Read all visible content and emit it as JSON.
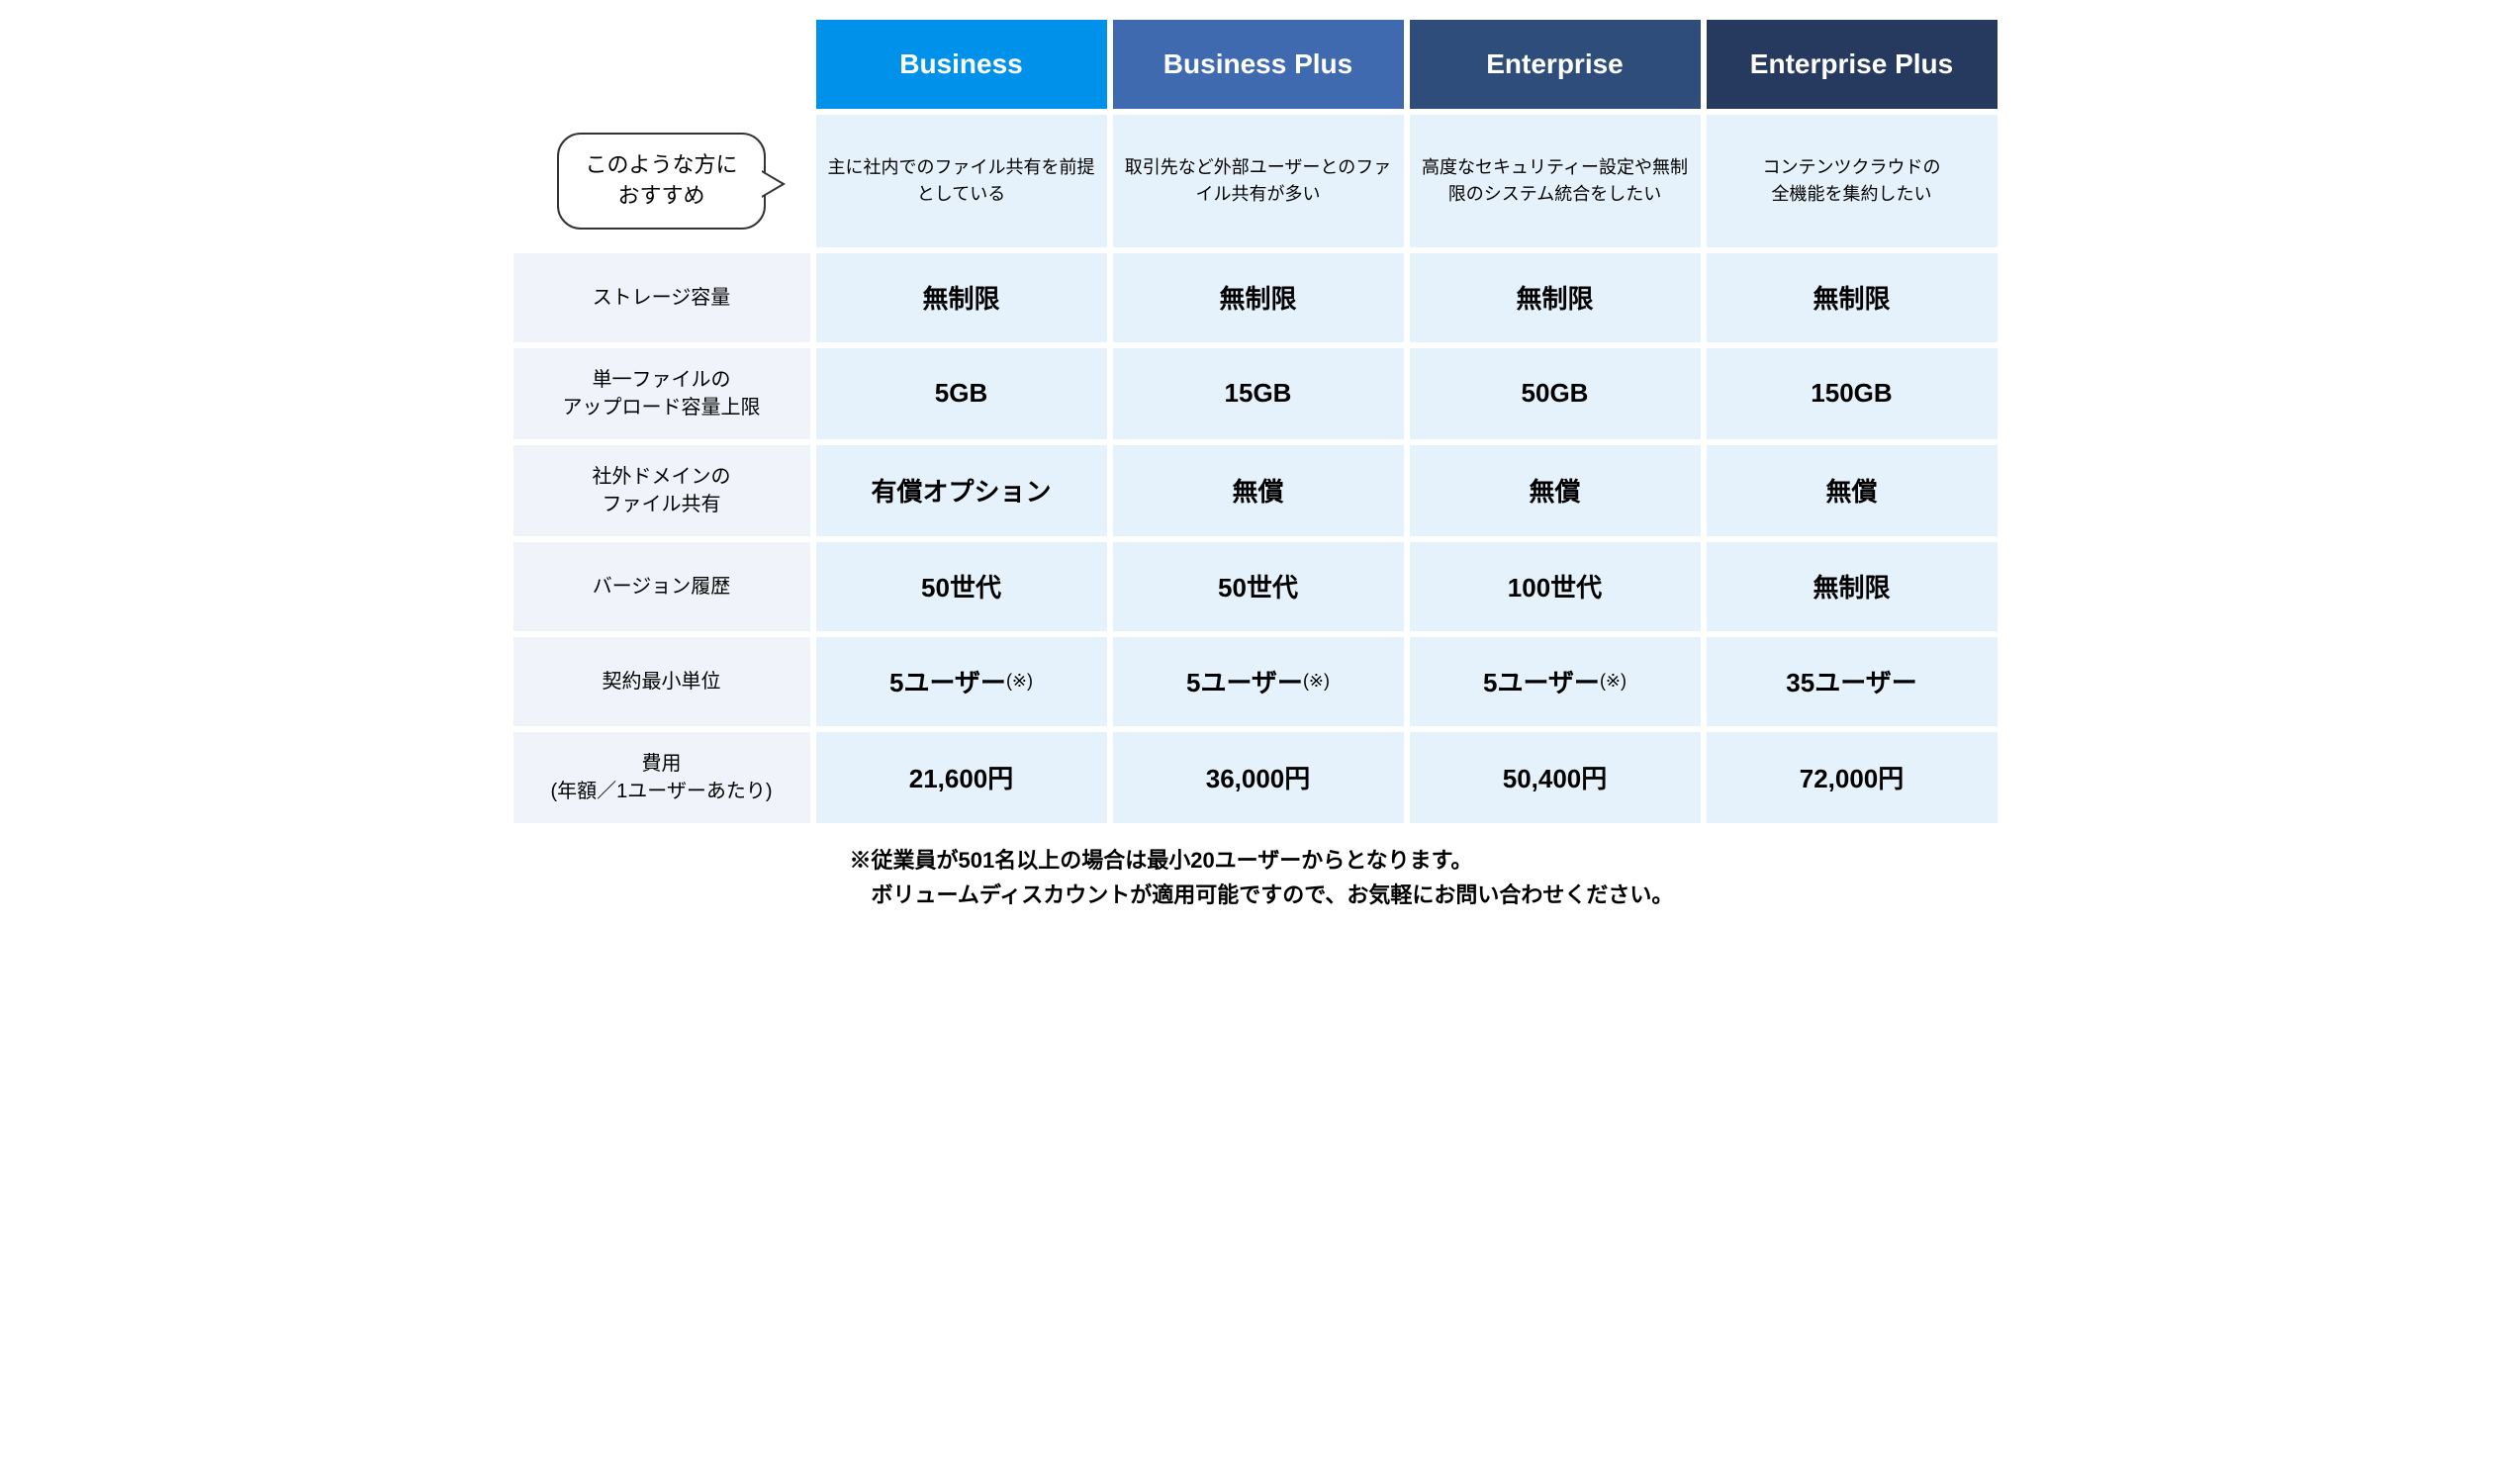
{
  "colors": {
    "header_business": "#0091ea",
    "header_business_plus": "#3f6ab0",
    "header_enterprise": "#2e4d7b",
    "header_enterprise_plus": "#253a5e",
    "header_text": "#ffffff",
    "cell_blue": "#e6f2fb",
    "cell_alt": "#f0f4fa",
    "label_cell": "#f0f4fa",
    "background": "#ffffff",
    "text": "#000000",
    "bubble_border": "#333333"
  },
  "bubble": {
    "line1": "このような方に",
    "line2": "おすすめ"
  },
  "plans": [
    {
      "name": "Business",
      "header_color": "#0091ea"
    },
    {
      "name": "Business Plus",
      "header_color": "#3f6ab0"
    },
    {
      "name": "Enterprise",
      "header_color": "#2e4d7b"
    },
    {
      "name": "Enterprise Plus",
      "header_color": "#253a5e"
    }
  ],
  "rows": [
    {
      "label_type": "bubble",
      "values": [
        "主に社内でのファイル共有を前提としている",
        "取引先など外部ユーザーとのファイル共有が多い",
        "高度なセキュリティー設定や無制限のシステム統合をしたい",
        "コンテンツクラウドの\n全機能を集約したい"
      ],
      "cell_style": "desc"
    },
    {
      "label": "ストレージ容量",
      "values": [
        "無制限",
        "無制限",
        "無制限",
        "無制限"
      ],
      "cell_style": "value"
    },
    {
      "label": "単一ファイルの\nアップロード容量上限",
      "values": [
        "5GB",
        "15GB",
        "50GB",
        "150GB"
      ],
      "cell_style": "value"
    },
    {
      "label": "社外ドメインの\nファイル共有",
      "values": [
        "有償オプション",
        "無償",
        "無償",
        "無償"
      ],
      "cell_style": "value"
    },
    {
      "label": "バージョン履歴",
      "values": [
        "50世代",
        "50世代",
        "100世代",
        "無制限"
      ],
      "cell_style": "value"
    },
    {
      "label": "契約最小単位",
      "values": [
        "5ユーザー",
        "5ユーザー",
        "5ユーザー",
        "35ユーザー"
      ],
      "notes": [
        "(※)",
        "(※)",
        "(※)",
        ""
      ],
      "cell_style": "value"
    },
    {
      "label": "費用\n(年額／1ユーザーあたり)",
      "values": [
        "21,600円",
        "36,000円",
        "50,400円",
        "72,000円"
      ],
      "cell_style": "value"
    }
  ],
  "footnote": {
    "line1": "※従業員が501名以上の場合は最小20ユーザーからとなります。",
    "line2": "　ボリュームディスカウントが適用可能ですので、お気軽にお問い合わせください。"
  }
}
